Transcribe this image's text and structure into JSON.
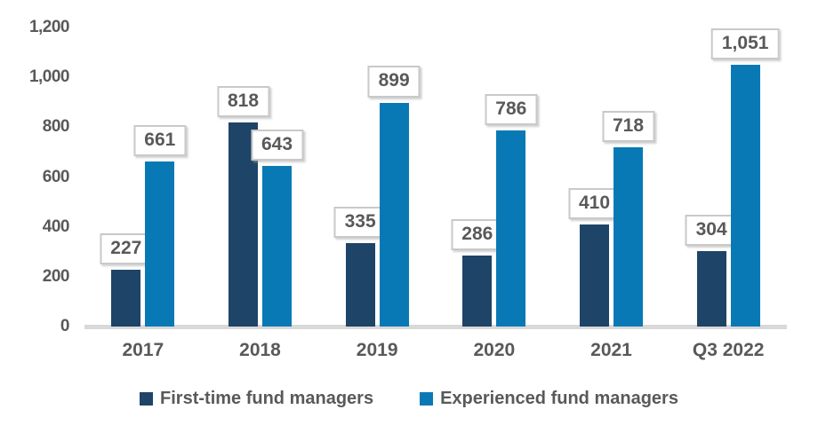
{
  "chart_data": {
    "type": "bar",
    "title": "",
    "xlabel": "",
    "ylabel": "",
    "categories": [
      "2017",
      "2018",
      "2019",
      "2020",
      "2021",
      "Q3 2022"
    ],
    "series": [
      {
        "name": "First-time fund managers",
        "color": "#1e4467",
        "values": [
          227,
          818,
          335,
          286,
          410,
          304
        ],
        "data_labels": [
          "227",
          "818",
          "335",
          "286",
          "410",
          "304"
        ]
      },
      {
        "name": "Experienced fund managers",
        "color": "#0979b5",
        "values": [
          661,
          643,
          899,
          786,
          718,
          1051
        ],
        "data_labels": [
          "661",
          "643",
          "899",
          "786",
          "718",
          "1,051"
        ]
      }
    ],
    "y_axis": {
      "min": 0,
      "max": 1200,
      "step": 200,
      "tick_labels": [
        "0",
        "200",
        "400",
        "600",
        "800",
        "1,000",
        "1,200"
      ]
    },
    "grid": false,
    "legend_position": "bottom",
    "data_label_style": {
      "boxed": true,
      "box_border_color": "#c9c9c9",
      "text_color": "#595959"
    },
    "axis_text_color": "#595959",
    "baseline_color": "#d9d9d9",
    "background_color": "#ffffff"
  }
}
